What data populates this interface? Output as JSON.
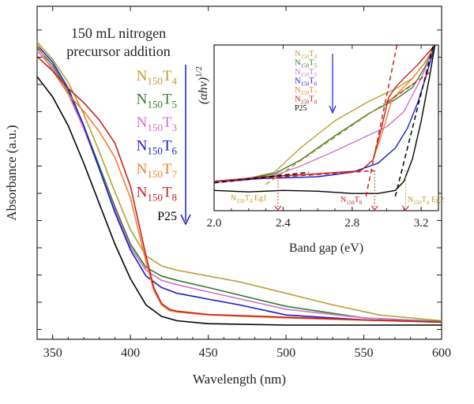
{
  "chart_data": [
    {
      "type": "line",
      "xlabel": "Wavelength (nm)",
      "ylabel": "Absorbance (a.u.)",
      "xlim": [
        340,
        600
      ],
      "ylim": [
        0,
        1
      ],
      "xticks": [
        350,
        400,
        450,
        500,
        550,
        600
      ],
      "grid": false,
      "annotation_lines": [
        "150 mL nitrogen",
        "precursor addition"
      ],
      "legend_placement": "top-center",
      "series": [
        {
          "name": "N150T4",
          "label_main": "N",
          "label_sub1": "150",
          "label_mid": "T",
          "label_sub2": "4",
          "color": "#b8a030",
          "x": [
            340,
            350,
            360,
            370,
            380,
            390,
            400,
            410,
            420,
            430,
            450,
            470,
            500,
            530,
            560,
            600
          ],
          "y": [
            0.98,
            0.92,
            0.84,
            0.73,
            0.6,
            0.46,
            0.33,
            0.24,
            0.205,
            0.19,
            0.17,
            0.15,
            0.11,
            0.07,
            0.035,
            0.015
          ]
        },
        {
          "name": "N150T5",
          "label_main": "N",
          "label_sub1": "150",
          "label_mid": "T",
          "label_sub2": "5",
          "color": "#2e7d32",
          "x": [
            340,
            350,
            360,
            370,
            380,
            390,
            400,
            410,
            420,
            430,
            450,
            500,
            550,
            600
          ],
          "y": [
            0.96,
            0.9,
            0.81,
            0.69,
            0.55,
            0.41,
            0.28,
            0.2,
            0.17,
            0.155,
            0.13,
            0.065,
            0.025,
            0.012
          ]
        },
        {
          "name": "N150T3",
          "label_main": "N",
          "label_sub1": "150",
          "label_mid": "T",
          "label_sub2": "3",
          "color": "#d070c8",
          "x": [
            340,
            350,
            360,
            370,
            380,
            390,
            400,
            410,
            420,
            430,
            450,
            500,
            550,
            600
          ],
          "y": [
            0.95,
            0.89,
            0.8,
            0.68,
            0.54,
            0.4,
            0.27,
            0.19,
            0.155,
            0.14,
            0.115,
            0.055,
            0.025,
            0.01
          ]
        },
        {
          "name": "N150T6",
          "label_main": "N",
          "label_sub1": "150",
          "label_mid": "T",
          "label_sub2": "6",
          "color": "#1a1ad0",
          "x": [
            340,
            350,
            360,
            370,
            380,
            390,
            400,
            410,
            420,
            430,
            450,
            470,
            500,
            550,
            600
          ],
          "y": [
            0.97,
            0.91,
            0.82,
            0.69,
            0.54,
            0.39,
            0.26,
            0.17,
            0.13,
            0.11,
            0.09,
            0.07,
            0.035,
            0.018,
            0.01
          ]
        },
        {
          "name": "N150T7",
          "label_main": "N",
          "label_sub1": "150",
          "label_mid": "T",
          "label_sub2": "7",
          "color": "#f08030",
          "x": [
            340,
            350,
            360,
            370,
            380,
            390,
            400,
            405,
            410,
            415,
            420,
            425,
            430,
            450,
            500,
            550,
            600
          ],
          "y": [
            0.97,
            0.88,
            0.8,
            0.74,
            0.67,
            0.58,
            0.44,
            0.33,
            0.22,
            0.12,
            0.07,
            0.05,
            0.045,
            0.035,
            0.025,
            0.017,
            0.01
          ]
        },
        {
          "name": "N150T8",
          "label_main": "N",
          "label_sub1": "150",
          "label_mid": "T",
          "label_sub2": "8",
          "color": "#c82020",
          "x": [
            340,
            350,
            360,
            370,
            380,
            390,
            400,
            405,
            410,
            415,
            420,
            425,
            430,
            450,
            500,
            550,
            600
          ],
          "y": [
            0.93,
            0.88,
            0.82,
            0.77,
            0.71,
            0.63,
            0.48,
            0.36,
            0.24,
            0.13,
            0.075,
            0.055,
            0.048,
            0.037,
            0.027,
            0.018,
            0.01
          ]
        },
        {
          "name": "P25",
          "label_main": "P25",
          "label_sub1": "",
          "label_mid": "",
          "label_sub2": "",
          "color": "#000000",
          "x": [
            340,
            350,
            360,
            370,
            380,
            390,
            400,
            410,
            420,
            430,
            450,
            500,
            550,
            600
          ],
          "y": [
            0.86,
            0.79,
            0.69,
            0.56,
            0.42,
            0.28,
            0.16,
            0.07,
            0.03,
            0.015,
            0.005,
            0.0,
            0.0,
            0.0
          ]
        }
      ]
    },
    {
      "type": "line",
      "xlabel": "Band gap (eV)",
      "ylabel_main": "(αhν)",
      "ylabel_sup": "1/2",
      "xlim": [
        2.0,
        3.3
      ],
      "ylim": [
        0,
        1
      ],
      "xticks": [
        2.0,
        2.4,
        2.8,
        3.2
      ],
      "xtick_labels": [
        "2.0",
        "2.4",
        "2.8",
        "3.2"
      ],
      "grid": false,
      "legend_placement": "top-left",
      "annotations": [
        {
          "text_main": "N",
          "text_sub1": "150",
          "text_mid": "T",
          "text_sub2": "4",
          "text_tail": " Eg1",
          "x": 2.37,
          "color": "#b8a030"
        },
        {
          "text_main": "N",
          "text_sub1": "150",
          "text_mid": "T",
          "text_sub2": "8",
          "text_tail": "",
          "x": 2.93,
          "color": "#c82020"
        },
        {
          "text_main": "N",
          "text_sub1": "150",
          "text_mid": "T",
          "text_sub2": "4",
          "text_tail": " Eg2",
          "x": 3.11,
          "color": "#b8a030"
        }
      ],
      "series": [
        {
          "name": "N150T4",
          "color": "#b8a030",
          "x": [
            2.0,
            2.2,
            2.35,
            2.5,
            2.7,
            2.9,
            3.05,
            3.15,
            3.22,
            3.28
          ],
          "y": [
            0.1,
            0.12,
            0.16,
            0.32,
            0.5,
            0.63,
            0.71,
            0.78,
            0.88,
            1.0
          ]
        },
        {
          "name": "N150T5",
          "color": "#2e7d32",
          "x": [
            2.0,
            2.2,
            2.35,
            2.5,
            2.7,
            2.9,
            3.05,
            3.15,
            3.22,
            3.28
          ],
          "y": [
            0.1,
            0.12,
            0.15,
            0.24,
            0.4,
            0.55,
            0.64,
            0.72,
            0.85,
            1.0
          ]
        },
        {
          "name": "N150T3",
          "color": "#d070c8",
          "x": [
            2.0,
            2.2,
            2.35,
            2.5,
            2.7,
            2.85,
            3.0,
            3.1,
            3.2,
            3.28
          ],
          "y": [
            0.09,
            0.11,
            0.14,
            0.2,
            0.3,
            0.38,
            0.46,
            0.56,
            0.78,
            1.0
          ]
        },
        {
          "name": "N150T7",
          "color": "#f08030",
          "x": [
            2.0,
            2.3,
            2.6,
            2.85,
            2.92,
            2.98,
            3.03,
            3.08,
            3.15,
            3.22,
            3.28
          ],
          "y": [
            0.1,
            0.13,
            0.15,
            0.17,
            0.24,
            0.44,
            0.64,
            0.7,
            0.78,
            0.88,
            1.0
          ]
        },
        {
          "name": "N150T6",
          "color": "#1a1ad0",
          "x": [
            2.0,
            2.3,
            2.6,
            2.8,
            2.95,
            3.05,
            3.12,
            3.18,
            3.23,
            3.28
          ],
          "y": [
            0.1,
            0.12,
            0.13,
            0.16,
            0.22,
            0.32,
            0.45,
            0.62,
            0.8,
            1.0
          ]
        },
        {
          "name": "N150T8",
          "color": "#c82020",
          "x": [
            2.0,
            2.3,
            2.6,
            2.85,
            2.92,
            2.97,
            3.01,
            3.05,
            3.1,
            3.18,
            3.28
          ],
          "y": [
            0.1,
            0.13,
            0.15,
            0.17,
            0.24,
            0.45,
            0.65,
            0.72,
            0.78,
            0.87,
            1.0
          ]
        },
        {
          "name": "P25",
          "color": "#000000",
          "x": [
            2.0,
            2.2,
            2.4,
            2.6,
            2.8,
            2.95,
            3.05,
            3.1,
            3.15,
            3.2,
            3.25,
            3.28
          ],
          "y": [
            0.04,
            0.03,
            0.04,
            0.035,
            0.02,
            0.02,
            0.04,
            0.1,
            0.25,
            0.5,
            0.8,
            1.0
          ]
        }
      ]
    }
  ]
}
